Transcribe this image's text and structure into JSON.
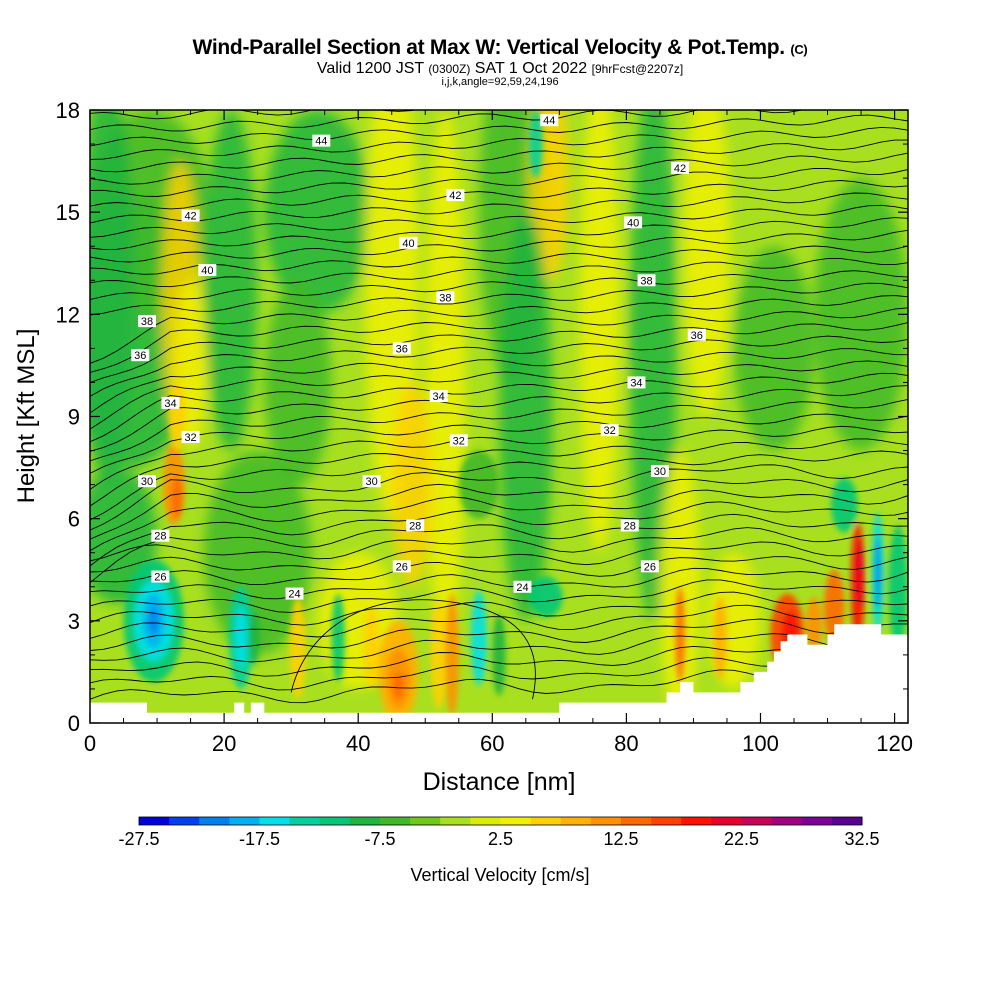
{
  "header": {
    "title": "Wind-Parallel Section at Max W: Vertical Velocity & Pot.Temp.",
    "title_mark": "(C)",
    "subtitle_main": "Valid 1200 JST",
    "subtitle_utc": "(0300Z)",
    "subtitle_date": "SAT 1 Oct 2022",
    "subtitle_fcst": "[9hrFcst@2207z]",
    "params": "i,j,k,angle=92,59,24,196"
  },
  "chart_data": {
    "type": "heatmap",
    "title": "Wind-Parallel Section at Max W: Vertical Velocity & Pot.Temp.",
    "xlabel": "Distance [nm]",
    "ylabel": "Height [Kft MSL]",
    "xlim": [
      0,
      122
    ],
    "ylim": [
      0,
      18
    ],
    "x_ticks": [
      "0",
      "20",
      "40",
      "60",
      "80",
      "100",
      "120"
    ],
    "y_ticks": [
      "0",
      "3",
      "6",
      "9",
      "12",
      "15",
      "18"
    ],
    "colorbar": {
      "label": "Vertical Velocity [cm/s]",
      "tick_labels": [
        "-27.5",
        "-17.5",
        "-7.5",
        "2.5",
        "12.5",
        "22.5",
        "32.5"
      ],
      "colors": [
        "#0000e0",
        "#0040f0",
        "#0080f0",
        "#00b0f0",
        "#00e0e8",
        "#00d0a0",
        "#00c878",
        "#20b440",
        "#40b828",
        "#70c818",
        "#a8e020",
        "#d8f000",
        "#f0f000",
        "#ffd000",
        "#ffb000",
        "#ff9000",
        "#ff6800",
        "#ff4000",
        "#ff1000",
        "#e8002c",
        "#c8005a",
        "#a00080",
        "#7c0098",
        "#580090"
      ]
    },
    "theta_contour_labels": [
      {
        "text": "44",
        "x": 34.5,
        "y": 17.1
      },
      {
        "text": "44",
        "x": 68.5,
        "y": 17.7
      },
      {
        "text": "42",
        "x": 15.0,
        "y": 14.9
      },
      {
        "text": "42",
        "x": 54.5,
        "y": 15.5
      },
      {
        "text": "42",
        "x": 88.0,
        "y": 16.3
      },
      {
        "text": "40",
        "x": 17.5,
        "y": 13.3
      },
      {
        "text": "40",
        "x": 47.5,
        "y": 14.1
      },
      {
        "text": "40",
        "x": 81.0,
        "y": 14.7
      },
      {
        "text": "38",
        "x": 8.5,
        "y": 11.8
      },
      {
        "text": "38",
        "x": 53.0,
        "y": 12.5
      },
      {
        "text": "38",
        "x": 83.0,
        "y": 13.0
      },
      {
        "text": "36",
        "x": 7.5,
        "y": 10.8
      },
      {
        "text": "36",
        "x": 46.5,
        "y": 11.0
      },
      {
        "text": "36",
        "x": 90.5,
        "y": 11.4
      },
      {
        "text": "34",
        "x": 12.0,
        "y": 9.4
      },
      {
        "text": "34",
        "x": 52.0,
        "y": 9.6
      },
      {
        "text": "34",
        "x": 81.5,
        "y": 10.0
      },
      {
        "text": "32",
        "x": 15.0,
        "y": 8.4
      },
      {
        "text": "32",
        "x": 55.0,
        "y": 8.3
      },
      {
        "text": "32",
        "x": 77.5,
        "y": 8.6
      },
      {
        "text": "30",
        "x": 8.5,
        "y": 7.1
      },
      {
        "text": "30",
        "x": 42.0,
        "y": 7.1
      },
      {
        "text": "30",
        "x": 85.0,
        "y": 7.4
      },
      {
        "text": "28",
        "x": 10.5,
        "y": 5.5
      },
      {
        "text": "28",
        "x": 48.5,
        "y": 5.8
      },
      {
        "text": "28",
        "x": 80.5,
        "y": 5.8
      },
      {
        "text": "26",
        "x": 10.5,
        "y": 4.3
      },
      {
        "text": "26",
        "x": 46.5,
        "y": 4.6
      },
      {
        "text": "26",
        "x": 83.5,
        "y": 4.6
      },
      {
        "text": "24",
        "x": 30.5,
        "y": 3.8
      },
      {
        "text": "24",
        "x": 64.5,
        "y": 4.0
      }
    ]
  }
}
